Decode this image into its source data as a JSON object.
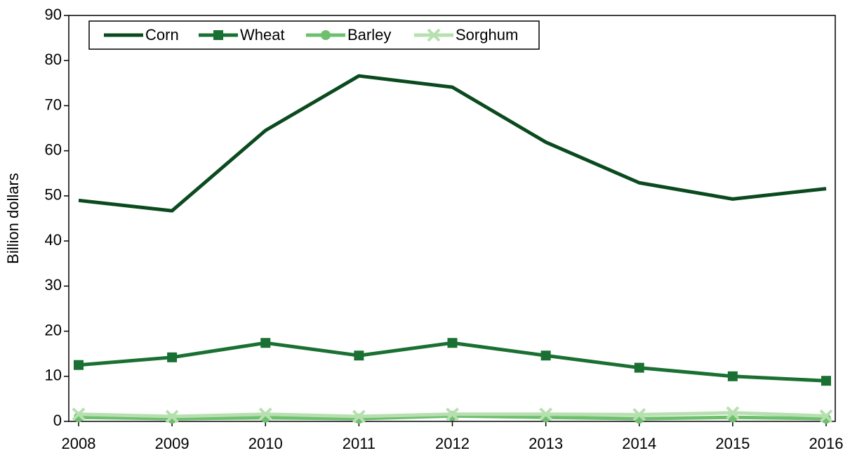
{
  "chart_data": {
    "type": "line",
    "y_label": "Billion dollars",
    "categories": [
      "2008",
      "2009",
      "2010",
      "2011",
      "2012",
      "2013",
      "2014",
      "2015",
      "2016"
    ],
    "series": [
      {
        "name": "Corn",
        "color": "#0b4a1e",
        "marker": "none",
        "values": [
          49.0,
          46.7,
          64.5,
          76.6,
          74.1,
          61.9,
          52.9,
          49.3,
          51.6
        ]
      },
      {
        "name": "Wheat",
        "color": "#1a7032",
        "marker": "square",
        "values": [
          12.5,
          14.2,
          17.4,
          14.6,
          17.4,
          14.6,
          11.9,
          10.0,
          9.0
        ]
      },
      {
        "name": "Barley",
        "color": "#6ebf6e",
        "marker": "circle",
        "values": [
          0.9,
          0.6,
          0.8,
          0.6,
          1.2,
          0.9,
          0.6,
          0.9,
          0.6
        ]
      },
      {
        "name": "Sorghum",
        "color": "#b7e0b0",
        "marker": "x",
        "values": [
          1.6,
          1.1,
          1.6,
          1.1,
          1.6,
          1.6,
          1.5,
          1.9,
          1.2
        ]
      }
    ],
    "ylim": [
      0,
      90
    ],
    "yticks": [
      0,
      10,
      20,
      30,
      40,
      50,
      60,
      70,
      80,
      90
    ],
    "legend": "upper left"
  }
}
